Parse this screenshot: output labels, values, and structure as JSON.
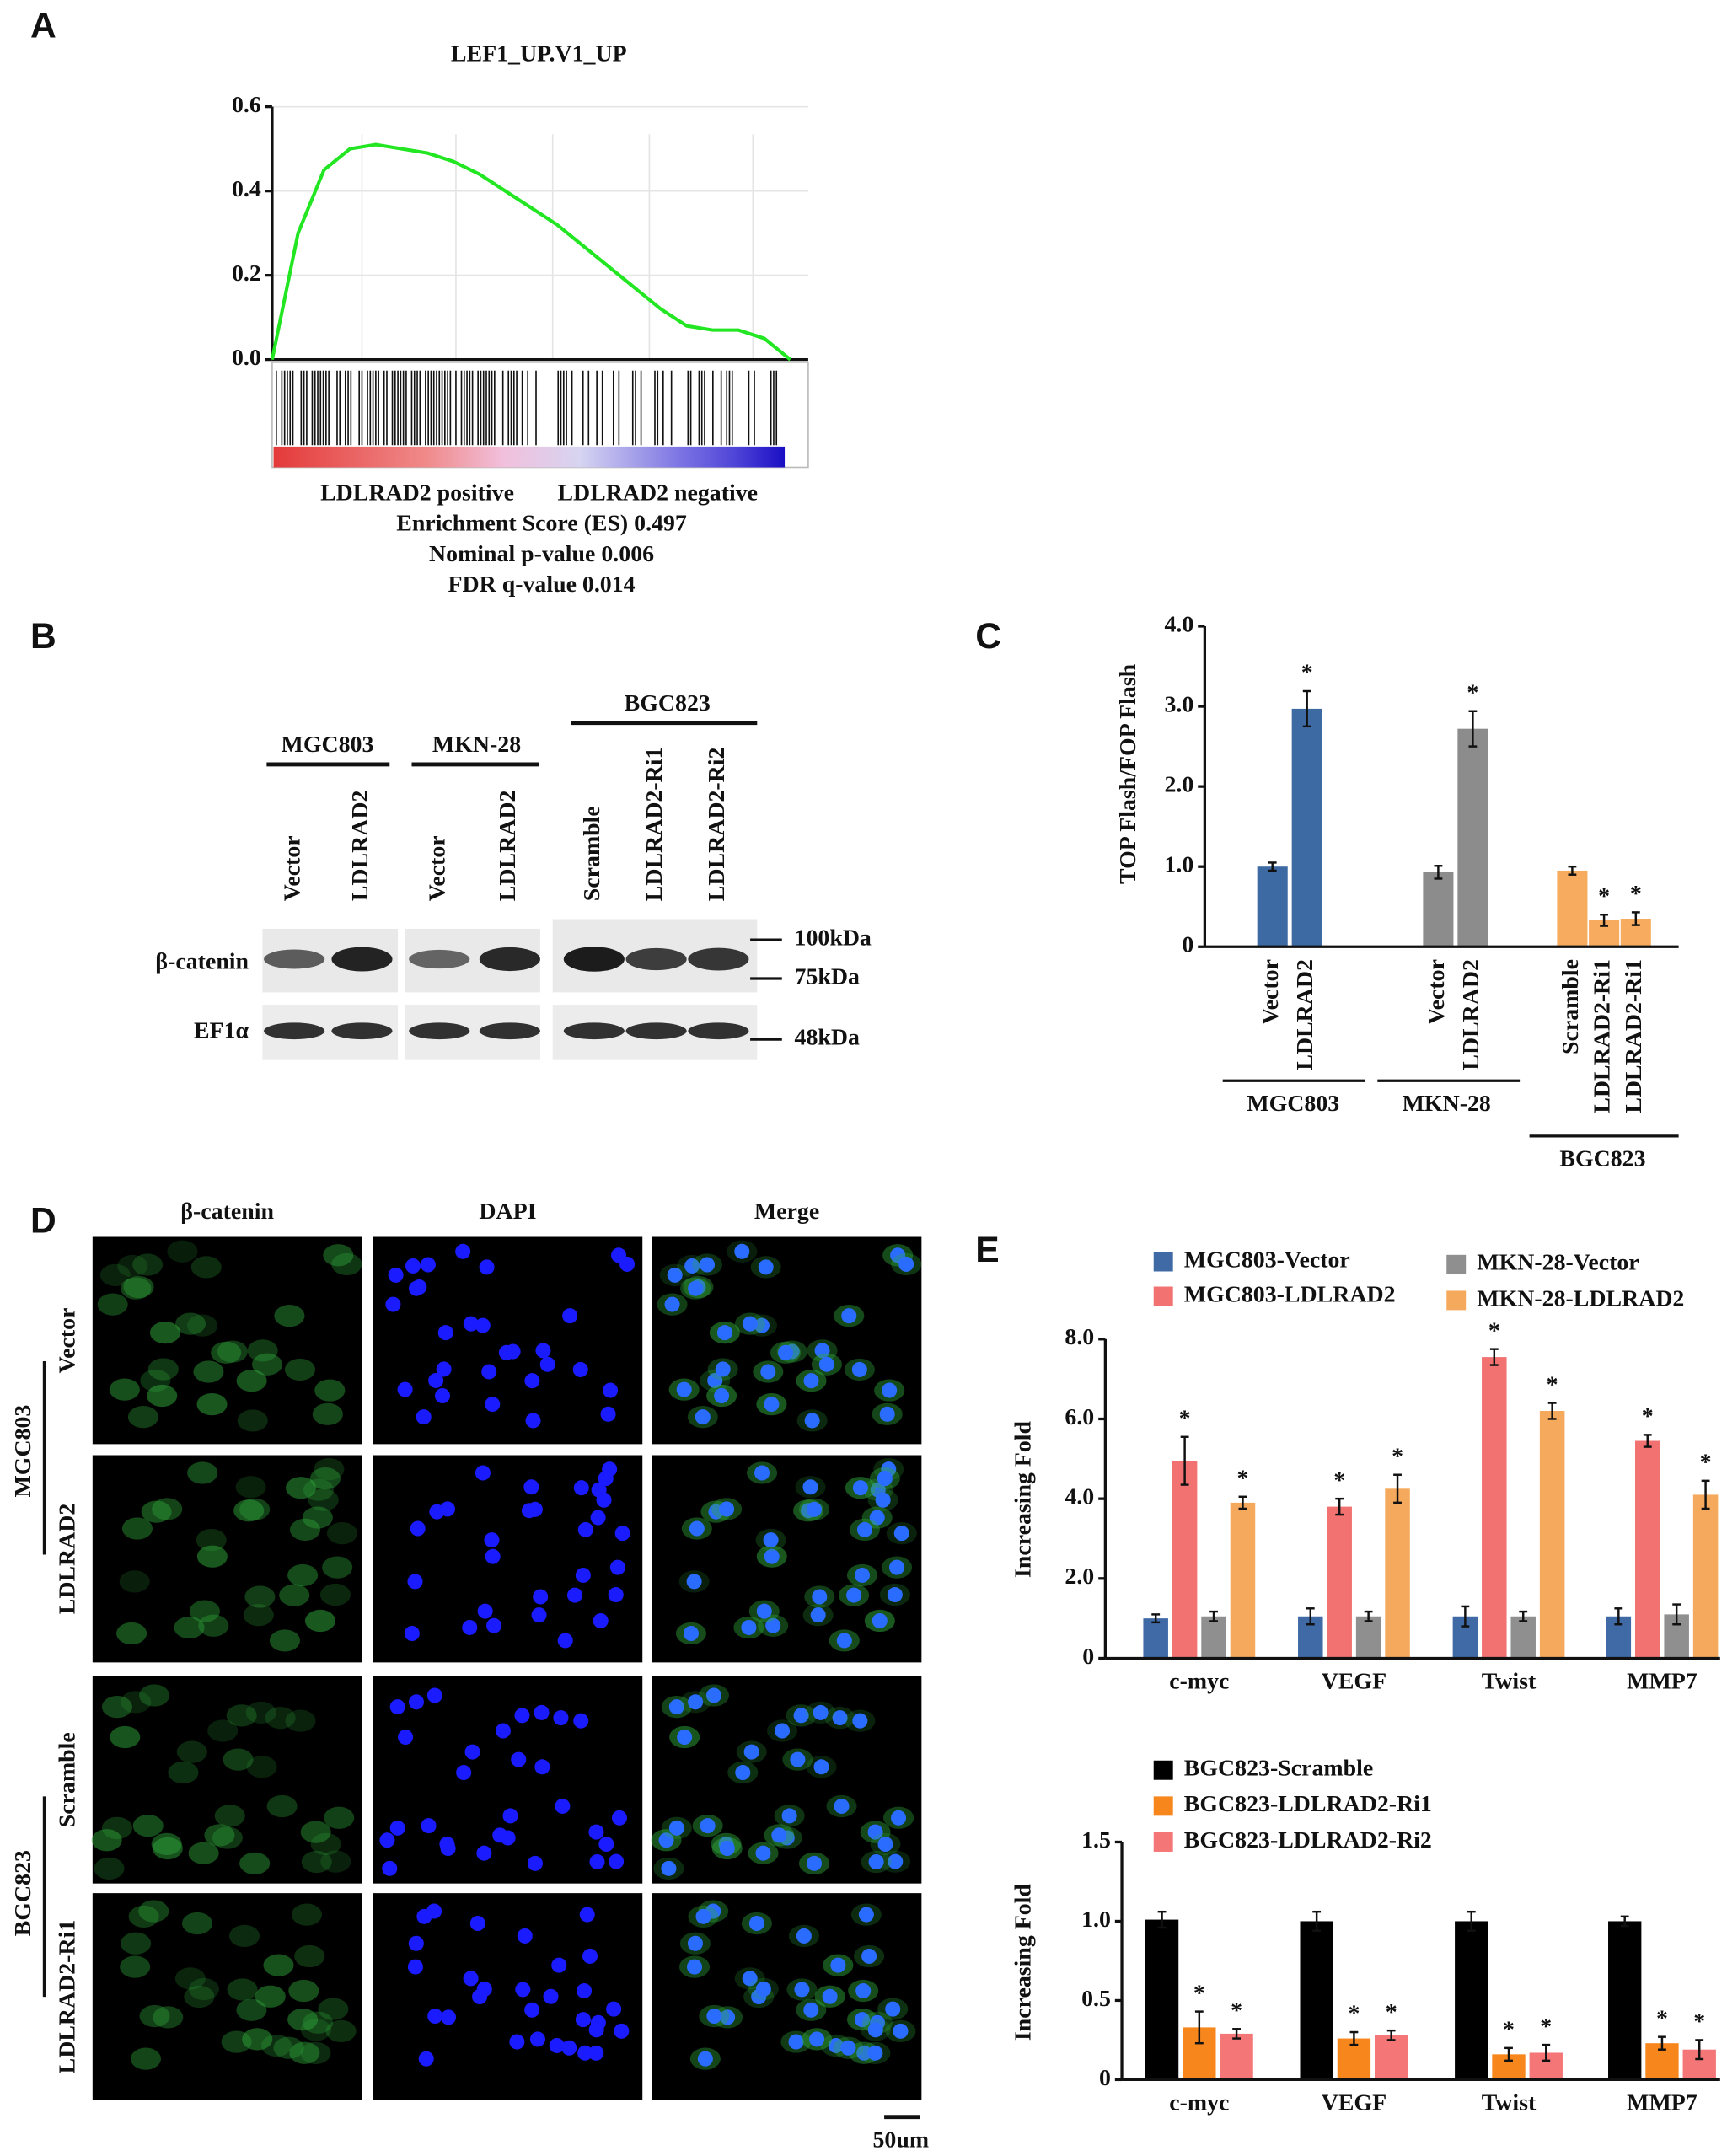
{
  "panel_labels": [
    "A",
    "B",
    "C",
    "D",
    "E"
  ],
  "chart_data": [
    {
      "type": "line",
      "title": "LEF1_UP.V1_UP",
      "values": [
        0,
        0.3,
        0.45,
        0.5,
        0.51,
        0.5,
        0.49,
        0.47,
        0.44,
        0.4,
        0.36,
        0.32,
        0.27,
        0.22,
        0.17,
        0.12,
        0.08,
        0.07,
        0.07,
        0.05,
        0
      ],
      "color": "#22e622",
      "ylim": [
        0,
        0.6
      ],
      "yticks": [
        {
          "value": 0,
          "label": "0.0"
        },
        {
          "value": 0.2,
          "label": "0.2"
        },
        {
          "value": 0.4,
          "label": "0.4"
        },
        {
          "value": 0.6,
          "label": "0.6"
        }
      ],
      "grid": true,
      "phenotype_labels": [
        "LDLRAD2 positive",
        "LDLRAD2 negative"
      ],
      "annotations": [
        "Enrichment Score (ES) 0.497",
        "Nominal p-value 0.006",
        "FDR q-value 0.014"
      ]
    },
    {
      "type": "bar",
      "ylabel": "TOP Flash/FOP Flash",
      "categories": [
        "Vector",
        "LDLRAD2",
        "Vector",
        "LDLRAD2",
        "Scramble",
        "LDLRAD2-Ri1",
        "LDLRAD2-Ri1"
      ],
      "values": [
        1.0,
        2.97,
        0.93,
        2.72,
        0.95,
        0.33,
        0.35
      ],
      "errors": [
        0.05,
        0.22,
        0.08,
        0.22,
        0.05,
        0.07,
        0.08
      ],
      "colors": [
        "#3e6aa3",
        "#3e6aa3",
        "#8c8c8c",
        "#8c8c8c",
        "#f6ab5e",
        "#f6ab5e",
        "#f6ab5e"
      ],
      "significance": [
        null,
        "*",
        null,
        "*",
        null,
        "*",
        "*"
      ],
      "groups": [
        "MGC803",
        "MKN-28",
        "BGC823"
      ],
      "ylim": [
        0,
        4
      ],
      "yticks": [
        0,
        {
          "value": 1,
          "label": "1.0"
        },
        {
          "value": 2,
          "label": "2.0"
        },
        {
          "value": 3,
          "label": "3.0"
        },
        {
          "value": 4,
          "label": "4.0"
        }
      ]
    },
    {
      "type": "grouped_bar",
      "ylabel": "Increasing Fold",
      "categories": [
        "c-myc",
        "VEGF",
        "Twist",
        "MMP7"
      ],
      "series": [
        {
          "name": "MGC803-Vector",
          "color": "#3f6aa6",
          "values": [
            1.0,
            1.05,
            1.05,
            1.05
          ],
          "errors": [
            0.1,
            0.2,
            0.25,
            0.2
          ]
        },
        {
          "name": "MGC803-LDLRAD2",
          "color": "#f27272",
          "values": [
            4.95,
            3.8,
            7.55,
            5.45
          ],
          "errors": [
            0.6,
            0.2,
            0.2,
            0.15
          ],
          "significance": [
            "*",
            "*",
            "*",
            "*"
          ]
        },
        {
          "name": "MKN-28-Vector",
          "color": "#8f8f8f",
          "values": [
            1.05,
            1.05,
            1.05,
            1.1
          ],
          "errors": [
            0.12,
            0.12,
            0.12,
            0.25
          ]
        },
        {
          "name": "MKN-28-LDLRAD2",
          "color": "#f5a95c",
          "values": [
            3.9,
            4.25,
            6.2,
            4.1
          ],
          "errors": [
            0.15,
            0.35,
            0.2,
            0.35
          ],
          "significance": [
            "*",
            "*",
            "*",
            "*"
          ]
        }
      ],
      "ylim": [
        0,
        8
      ],
      "yticks": [
        0,
        {
          "value": 2,
          "label": "2.0"
        },
        {
          "value": 4,
          "label": "4.0"
        },
        {
          "value": 6,
          "label": "6.0"
        },
        {
          "value": 8,
          "label": "8.0"
        }
      ]
    },
    {
      "type": "grouped_bar",
      "ylabel": "Increasing Fold",
      "categories": [
        "c-myc",
        "VEGF",
        "Twist",
        "MMP7"
      ],
      "series": [
        {
          "name": "BGC823-Scramble",
          "color": "#000000",
          "values": [
            1.01,
            1.0,
            1.0,
            1.0
          ],
          "errors": [
            0.05,
            0.06,
            0.06,
            0.03
          ]
        },
        {
          "name": "BGC823-LDLRAD2-Ri1",
          "color": "#f7861d",
          "values": [
            0.33,
            0.26,
            0.16,
            0.23
          ],
          "errors": [
            0.1,
            0.04,
            0.04,
            0.04
          ],
          "significance": [
            "*",
            "*",
            "*",
            "*"
          ]
        },
        {
          "name": "BGC823-LDLRAD2-Ri2",
          "color": "#f47676",
          "values": [
            0.29,
            0.28,
            0.17,
            0.19
          ],
          "errors": [
            0.03,
            0.03,
            0.05,
            0.06
          ],
          "significance": [
            "*",
            "*",
            "*",
            "*"
          ]
        }
      ],
      "ylim": [
        0,
        1.5
      ],
      "yticks": [
        0,
        {
          "value": 0.5,
          "label": "0.5"
        },
        {
          "value": 1,
          "label": "1.0"
        },
        {
          "value": 1.5,
          "label": "1.5"
        }
      ]
    }
  ],
  "western_blot": {
    "cell_lines": [
      "MGC803",
      "MKN-28",
      "BGC823"
    ],
    "lanes": [
      "Vector",
      "LDLRAD2",
      "Vector",
      "LDLRAD2",
      "Scramble",
      "LDLRAD2-Ri1",
      "LDLRAD2-Ri2"
    ],
    "proteins": [
      "β-catenin",
      "EF1α"
    ],
    "markers": [
      "100kDa",
      "75kDa",
      "48kDa"
    ]
  },
  "immunofluorescence": {
    "channels": [
      "β-catenin",
      "DAPI",
      "Merge"
    ],
    "groups": [
      "MGC803",
      "BGC823"
    ],
    "rows": [
      "Vector",
      "LDLRAD2",
      "Scramble",
      "LDLRAD2-Ri1"
    ],
    "scale_bar": "50um"
  }
}
